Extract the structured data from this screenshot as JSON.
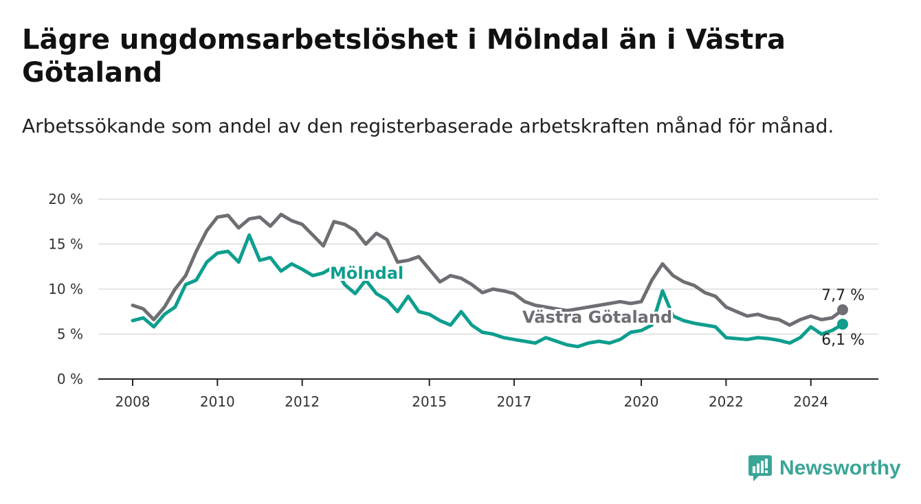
{
  "header": {
    "title": "Lägre ungdomsarbetslöshet i Mölndal än i Västra Götaland",
    "subtitle": "Arbetssökande som andel av den registerbaserade arbetskraften månad för månad."
  },
  "brand": {
    "name": "Newsworthy",
    "icon": "bar-chart-bubble-icon",
    "color": "#3aa596"
  },
  "chart_data": {
    "type": "line",
    "title": "Lägre ungdomsarbetslöshet i Mölndal än i Västra Götaland",
    "subtitle": "Arbetssökande som andel av den registerbaserade arbetskraften månad för månad.",
    "xlabel": "",
    "ylabel": "",
    "ylim": [
      0,
      20
    ],
    "y_ticks": [
      0,
      5,
      10,
      15,
      20
    ],
    "y_tick_labels": [
      "0 %",
      "5 %",
      "10 %",
      "15 %",
      "20 %"
    ],
    "x_ticks": [
      2008,
      2010,
      2012,
      2015,
      2017,
      2020,
      2022,
      2024
    ],
    "x_tick_labels": [
      "2008",
      "2010",
      "2012",
      "2015",
      "2017",
      "2020",
      "2022",
      "2024"
    ],
    "grid": true,
    "legend": "inline labels",
    "series": [
      {
        "name": "Västra Götaland",
        "color": "#6e6e73",
        "end_label": "7,7 %",
        "x": [
          2008.0,
          2008.25,
          2008.5,
          2008.75,
          2009.0,
          2009.25,
          2009.5,
          2009.75,
          2010.0,
          2010.25,
          2010.5,
          2010.75,
          2011.0,
          2011.25,
          2011.5,
          2011.75,
          2012.0,
          2012.25,
          2012.5,
          2012.75,
          2013.0,
          2013.25,
          2013.5,
          2013.75,
          2014.0,
          2014.25,
          2014.5,
          2014.75,
          2015.0,
          2015.25,
          2015.5,
          2015.75,
          2016.0,
          2016.25,
          2016.5,
          2016.75,
          2017.0,
          2017.25,
          2017.5,
          2017.75,
          2018.0,
          2018.25,
          2018.5,
          2018.75,
          2019.0,
          2019.25,
          2019.5,
          2019.75,
          2020.0,
          2020.25,
          2020.5,
          2020.75,
          2021.0,
          2021.25,
          2021.5,
          2021.75,
          2022.0,
          2022.25,
          2022.5,
          2022.75,
          2023.0,
          2023.25,
          2023.5,
          2023.75,
          2024.0,
          2024.25,
          2024.5,
          2024.75
        ],
        "values": [
          8.2,
          7.8,
          6.6,
          8.0,
          10.0,
          11.5,
          14.2,
          16.5,
          18.0,
          18.2,
          16.8,
          17.8,
          18.0,
          17.0,
          18.3,
          17.6,
          17.2,
          16.0,
          14.8,
          17.5,
          17.2,
          16.5,
          15.0,
          16.2,
          15.5,
          13.0,
          13.2,
          13.6,
          12.2,
          10.8,
          11.5,
          11.2,
          10.5,
          9.6,
          10.0,
          9.8,
          9.5,
          8.6,
          8.2,
          8.0,
          7.8,
          7.6,
          7.8,
          8.0,
          8.2,
          8.4,
          8.6,
          8.4,
          8.6,
          11.0,
          12.8,
          11.5,
          10.8,
          10.4,
          9.6,
          9.2,
          8.0,
          7.5,
          7.0,
          7.2,
          6.8,
          6.6,
          6.0,
          6.6,
          7.0,
          6.6,
          6.8,
          7.7
        ]
      },
      {
        "name": "Mölndal",
        "color": "#0d9e8e",
        "end_label": "6,1 %",
        "x": [
          2008.0,
          2008.25,
          2008.5,
          2008.75,
          2009.0,
          2009.25,
          2009.5,
          2009.75,
          2010.0,
          2010.25,
          2010.5,
          2010.75,
          2011.0,
          2011.25,
          2011.5,
          2011.75,
          2012.0,
          2012.25,
          2012.5,
          2012.75,
          2013.0,
          2013.25,
          2013.5,
          2013.75,
          2014.0,
          2014.25,
          2014.5,
          2014.75,
          2015.0,
          2015.25,
          2015.5,
          2015.75,
          2016.0,
          2016.25,
          2016.5,
          2016.75,
          2017.0,
          2017.25,
          2017.5,
          2017.75,
          2018.0,
          2018.25,
          2018.5,
          2018.75,
          2019.0,
          2019.25,
          2019.5,
          2019.75,
          2020.0,
          2020.25,
          2020.5,
          2020.75,
          2021.0,
          2021.25,
          2021.5,
          2021.75,
          2022.0,
          2022.25,
          2022.5,
          2022.75,
          2023.0,
          2023.25,
          2023.5,
          2023.75,
          2024.0,
          2024.25,
          2024.5,
          2024.75
        ],
        "values": [
          6.5,
          6.8,
          5.8,
          7.2,
          8.0,
          10.5,
          11.0,
          13.0,
          14.0,
          14.2,
          13.0,
          16.0,
          13.2,
          13.5,
          12.0,
          12.8,
          12.2,
          11.5,
          11.8,
          12.5,
          10.5,
          9.5,
          11.0,
          9.5,
          8.8,
          7.5,
          9.2,
          7.5,
          7.2,
          6.5,
          6.0,
          7.5,
          6.0,
          5.2,
          5.0,
          4.6,
          4.4,
          4.2,
          4.0,
          4.6,
          4.2,
          3.8,
          3.6,
          4.0,
          4.2,
          4.0,
          4.4,
          5.2,
          5.4,
          6.0,
          9.8,
          7.0,
          6.5,
          6.2,
          6.0,
          5.8,
          4.6,
          4.5,
          4.4,
          4.6,
          4.5,
          4.3,
          4.0,
          4.6,
          5.8,
          5.0,
          5.4,
          6.1
        ]
      }
    ]
  }
}
